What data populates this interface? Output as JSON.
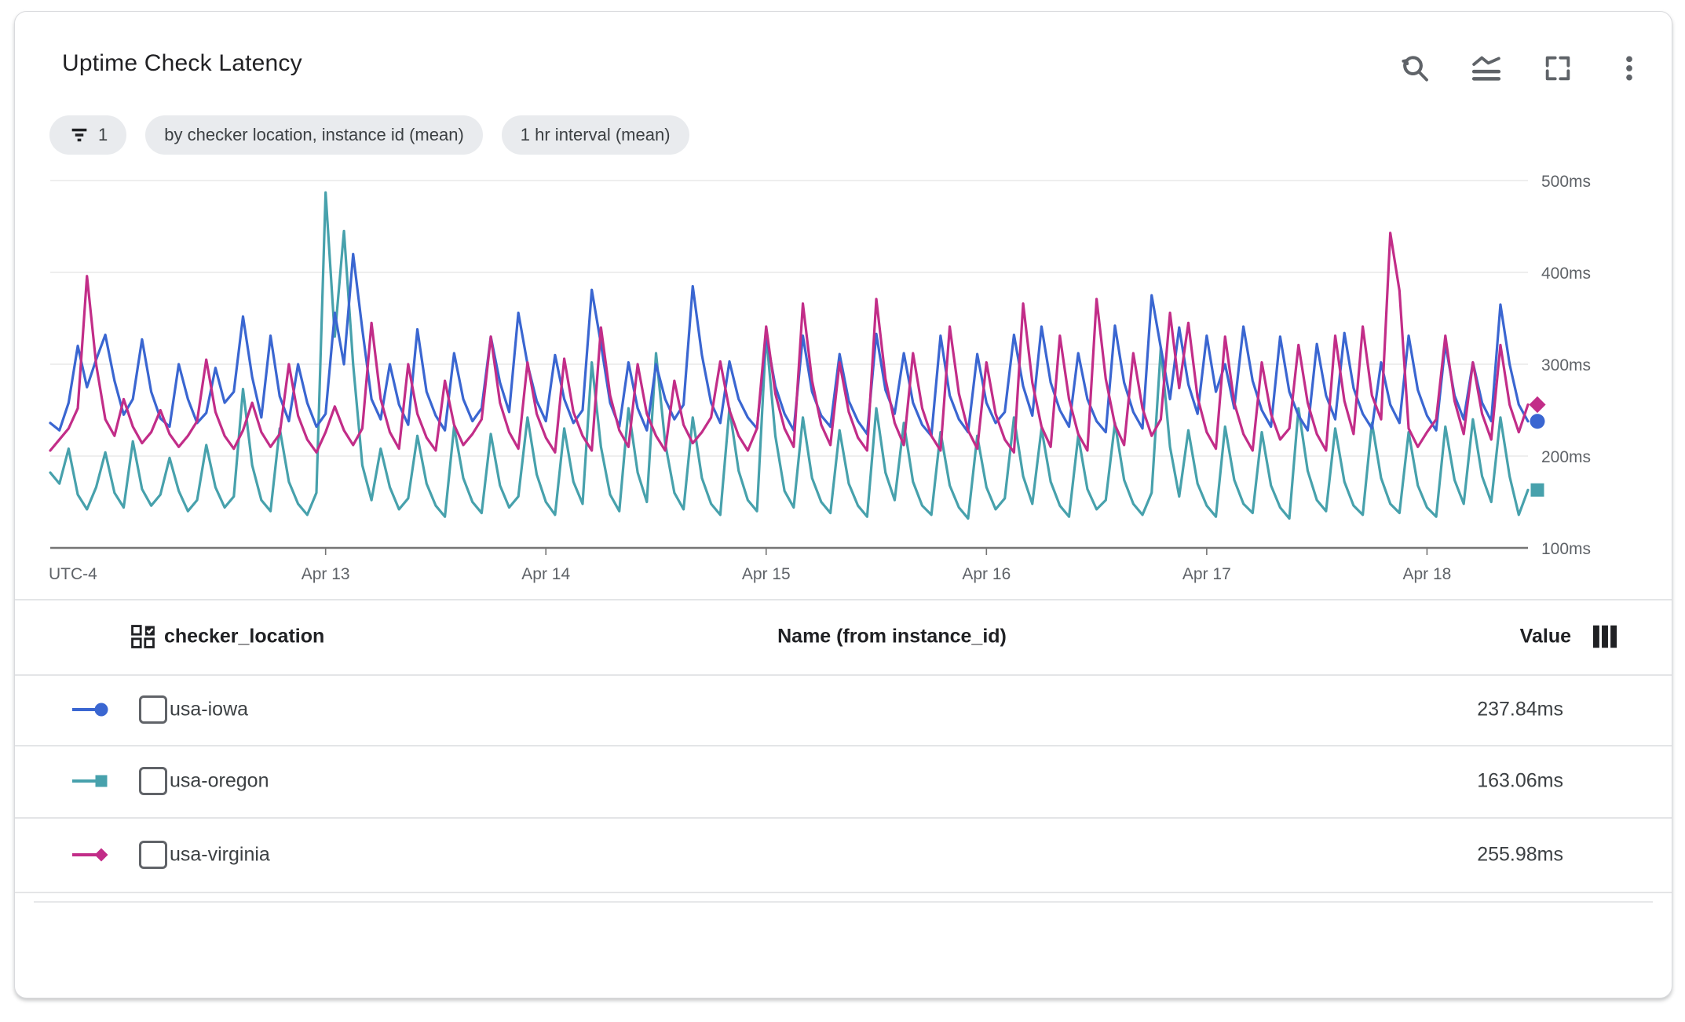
{
  "card": {
    "title": "Uptime Check Latency"
  },
  "toolbar": {
    "icons": [
      "zoom-reset-icon",
      "legend-toggle-icon",
      "fullscreen-icon",
      "more-options-icon"
    ]
  },
  "chips": {
    "filter": {
      "icon": "filter-list-icon",
      "label": "1"
    },
    "group_by": "by checker location, instance id (mean)",
    "interval": "1 hr interval (mean)"
  },
  "chart_data": {
    "type": "line",
    "title": "Uptime Check Latency",
    "unit": "ms",
    "grid": true,
    "legend_position": "bottom-table",
    "x_axis": {
      "timezone_label": "UTC-4",
      "tick_labels": [
        "Apr 13",
        "Apr 14",
        "Apr 15",
        "Apr 16",
        "Apr 17",
        "Apr 18"
      ],
      "tick_hours": [
        30,
        54,
        78,
        102,
        126,
        150
      ],
      "total_hours": 161,
      "interval": "1 hr"
    },
    "y_axis": {
      "side": "right",
      "ylim": [
        100,
        500
      ],
      "ticks": [
        {
          "value": 500,
          "label": "500ms"
        },
        {
          "value": 400,
          "label": "400ms"
        },
        {
          "value": 300,
          "label": "300ms"
        },
        {
          "value": 200,
          "label": "200ms"
        },
        {
          "value": 100,
          "label": "100ms"
        }
      ]
    },
    "series": [
      {
        "name": "usa-iowa",
        "color": "#3A66D1",
        "marker": "circle",
        "latest_value": "237.84ms",
        "values": [
          236,
          228,
          258,
          320,
          275,
          305,
          332,
          282,
          245,
          262,
          327,
          270,
          241,
          232,
          300,
          262,
          236,
          247,
          296,
          258,
          270,
          352,
          286,
          242,
          331,
          265,
          238,
          300,
          258,
          232,
          246,
          356,
          300,
          420,
          338,
          262,
          240,
          300,
          256,
          234,
          338,
          270,
          244,
          228,
          312,
          262,
          238,
          252,
          330,
          280,
          248,
          356,
          300,
          260,
          238,
          310,
          262,
          236,
          250,
          381,
          322,
          258,
          232,
          302,
          252,
          228,
          300,
          262,
          240,
          256,
          385,
          310,
          258,
          236,
          303,
          262,
          242,
          230,
          332,
          276,
          246,
          228,
          331,
          270,
          244,
          232,
          311,
          260,
          238,
          224,
          333,
          272,
          246,
          312,
          258,
          234,
          222,
          331,
          266,
          240,
          226,
          311,
          258,
          236,
          248,
          332,
          276,
          244,
          341,
          280,
          250,
          232,
          312,
          262,
          238,
          226,
          342,
          280,
          248,
          230,
          375,
          318,
          262,
          340,
          278,
          246,
          331,
          270,
          300,
          252,
          341,
          282,
          250,
          232,
          330,
          270,
          244,
          228,
          322,
          266,
          240,
          334,
          274,
          246,
          230,
          302,
          256,
          236,
          331,
          272,
          244,
          228,
          322,
          266,
          240,
          302,
          258,
          238,
          365,
          300,
          256,
          237.84
        ]
      },
      {
        "name": "usa-oregon",
        "color": "#47A1AC",
        "marker": "square",
        "latest_value": "163.06ms",
        "values": [
          182,
          170,
          208,
          158,
          142,
          166,
          204,
          160,
          144,
          216,
          164,
          146,
          158,
          198,
          162,
          140,
          152,
          212,
          166,
          144,
          156,
          273,
          190,
          152,
          140,
          230,
          172,
          148,
          136,
          160,
          487,
          330,
          445,
          300,
          190,
          152,
          208,
          166,
          142,
          154,
          222,
          170,
          146,
          134,
          232,
          176,
          150,
          138,
          224,
          168,
          144,
          156,
          242,
          180,
          150,
          136,
          230,
          172,
          148,
          302,
          210,
          158,
          140,
          252,
          182,
          150,
          312,
          214,
          160,
          142,
          242,
          176,
          148,
          136,
          252,
          184,
          152,
          140,
          332,
          222,
          162,
          144,
          242,
          176,
          150,
          138,
          228,
          170,
          146,
          134,
          252,
          182,
          152,
          236,
          172,
          146,
          136,
          226,
          168,
          144,
          132,
          222,
          166,
          142,
          154,
          242,
          178,
          148,
          230,
          172,
          146,
          134,
          222,
          164,
          142,
          152,
          236,
          174,
          148,
          136,
          160,
          318,
          210,
          156,
          228,
          170,
          146,
          134,
          232,
          174,
          148,
          138,
          226,
          168,
          144,
          132,
          252,
          184,
          152,
          140,
          230,
          172,
          146,
          136,
          236,
          176,
          148,
          138,
          226,
          168,
          144,
          134,
          232,
          174,
          148,
          240,
          178,
          150,
          242,
          178,
          136,
          163.06
        ]
      },
      {
        "name": "usa-virginia",
        "color": "#C22D88",
        "marker": "diamond",
        "latest_value": "255.98ms",
        "values": [
          206,
          218,
          230,
          252,
          396,
          300,
          240,
          222,
          262,
          232,
          214,
          226,
          250,
          224,
          210,
          222,
          238,
          305,
          248,
          222,
          208,
          228,
          258,
          226,
          210,
          224,
          300,
          244,
          218,
          204,
          226,
          254,
          228,
          212,
          230,
          345,
          262,
          226,
          208,
          300,
          246,
          220,
          206,
          282,
          234,
          212,
          224,
          240,
          330,
          258,
          226,
          208,
          302,
          246,
          220,
          204,
          306,
          248,
          222,
          206,
          340,
          266,
          228,
          210,
          300,
          246,
          222,
          206,
          282,
          234,
          214,
          226,
          242,
          303,
          250,
          222,
          206,
          230,
          341,
          268,
          230,
          210,
          366,
          282,
          234,
          212,
          302,
          248,
          220,
          206,
          371,
          284,
          236,
          212,
          312,
          252,
          222,
          206,
          341,
          268,
          228,
          208,
          302,
          246,
          218,
          204,
          366,
          280,
          232,
          210,
          331,
          262,
          224,
          206,
          371,
          284,
          234,
          212,
          312,
          252,
          222,
          240,
          356,
          274,
          345,
          264,
          226,
          208,
          330,
          258,
          224,
          206,
          302,
          246,
          218,
          230,
          321,
          258,
          224,
          206,
          331,
          260,
          224,
          341,
          266,
          240,
          443,
          380,
          230,
          210,
          226,
          240,
          331,
          260,
          224,
          302,
          246,
          218,
          321,
          256,
          226,
          255.98
        ]
      }
    ]
  },
  "legend_table": {
    "columns": {
      "checker_location": "checker_location",
      "name": "Name (from instance_id)",
      "value": "Value"
    },
    "column_icons": [
      "column-select-icon",
      "columns-icon"
    ],
    "rows": [
      {
        "checker_location": "usa-iowa",
        "name": "",
        "value": "237.84ms",
        "checked": false
      },
      {
        "checker_location": "usa-oregon",
        "name": "",
        "value": "163.06ms",
        "checked": false
      },
      {
        "checker_location": "usa-virginia",
        "name": "",
        "value": "255.98ms",
        "checked": false
      }
    ]
  }
}
